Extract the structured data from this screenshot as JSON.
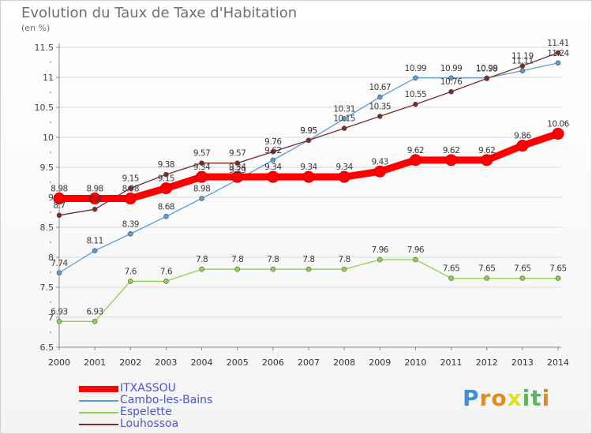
{
  "chart_data": {
    "type": "line",
    "title": "Evolution du Taux de Taxe d'Habitation",
    "subtitle": "(en %)",
    "xlabel": "",
    "ylabel": "",
    "x": [
      "2000",
      "2001",
      "2002",
      "2003",
      "2004",
      "2005",
      "2006",
      "2007",
      "2008",
      "2009",
      "2010",
      "2011",
      "2012",
      "2013",
      "2014"
    ],
    "ylim": [
      6.5,
      11.5
    ],
    "yticks": [
      "6.5",
      "7",
      "7.5",
      "8",
      "8.5",
      "9",
      "9.5",
      "10",
      "10.5",
      "11",
      "11.5"
    ],
    "grid": "horizontal",
    "legend": "bottom-left",
    "series": [
      {
        "name": "ITXASSOU",
        "color": "#ff0000",
        "values": [
          8.98,
          8.98,
          8.98,
          9.15,
          9.34,
          9.34,
          9.34,
          9.34,
          9.34,
          9.43,
          9.62,
          9.62,
          9.62,
          9.86,
          10.06
        ],
        "labels": [
          "8.98",
          "8.98",
          "8.98",
          "9.15",
          "9.34",
          "9.34",
          "9.34",
          "9.34",
          "9.34",
          "9.43",
          "9.62",
          "9.62",
          "9.62",
          "9.86",
          "10.06"
        ]
      },
      {
        "name": "Cambo-les-Bains",
        "color": "#5b9bd5",
        "values": [
          7.74,
          8.11,
          8.39,
          8.68,
          8.98,
          9.29,
          9.62,
          9.95,
          10.31,
          10.67,
          10.99,
          10.99,
          10.99,
          11.11,
          11.24
        ],
        "labels": [
          "7.74",
          "8.11",
          "8.39",
          "8.68",
          "8.98",
          "9.29",
          "9.62",
          "9.95",
          "10.31",
          "10.67",
          "10.99",
          "10.99",
          "10.99",
          "11.11",
          "11.24"
        ]
      },
      {
        "name": "Espelette",
        "color": "#8fd14f",
        "values": [
          6.93,
          6.93,
          7.6,
          7.6,
          7.8,
          7.8,
          7.8,
          7.8,
          7.8,
          7.96,
          7.96,
          7.65,
          7.65,
          7.65,
          7.65
        ],
        "labels": [
          "6.93",
          "6.93",
          "7.6",
          "7.6",
          "7.8",
          "7.8",
          "7.8",
          "7.8",
          "7.8",
          "7.96",
          "7.96",
          "7.65",
          "7.65",
          "7.65",
          "7.65"
        ]
      },
      {
        "name": "Louhossoa",
        "color": "#7a2a2a",
        "values": [
          8.7,
          8.8,
          9.15,
          9.38,
          9.57,
          9.57,
          9.76,
          9.95,
          10.15,
          10.35,
          10.55,
          10.76,
          10.98,
          11.19,
          11.41
        ],
        "labels": [
          "8.7",
          "8.8",
          "9.15",
          "9.38",
          "9.57",
          "9.57",
          "9.76",
          "9.95",
          "10.15",
          "10.35",
          "10.55",
          "10.76",
          "10.98",
          "11.19",
          "11.41"
        ]
      }
    ]
  },
  "brand": "Proxiti"
}
